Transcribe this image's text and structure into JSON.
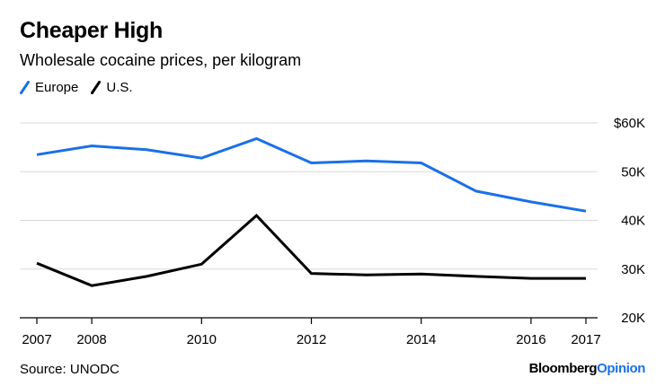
{
  "chart_data": {
    "type": "line",
    "title": "Cheaper High",
    "subtitle": "Wholesale cocaine prices, per kilogram",
    "x": [
      2007,
      2008,
      2009,
      2010,
      2011,
      2012,
      2013,
      2014,
      2015,
      2016,
      2017
    ],
    "x_tick_labels": [
      "2007",
      "2008",
      "2010",
      "2012",
      "2014",
      "2016",
      "2017"
    ],
    "x_tick_values": [
      2007,
      2008,
      2010,
      2012,
      2014,
      2016,
      2017
    ],
    "y_tick_labels": [
      "$60K",
      "50K",
      "40K",
      "30K",
      "20K"
    ],
    "y_tick_values": [
      60000,
      50000,
      40000,
      30000,
      20000
    ],
    "ylim": [
      20000,
      60000
    ],
    "xlim": [
      2007,
      2017
    ],
    "grid": true,
    "legend_position": "top-left",
    "series": [
      {
        "name": "Europe",
        "color": "#1a70e8",
        "values": [
          53500,
          55300,
          54500,
          52800,
          56800,
          51800,
          52200,
          51800,
          46000,
          43800,
          41900
        ]
      },
      {
        "name": "U.S.",
        "color": "#000000",
        "values": [
          31200,
          26600,
          28500,
          31000,
          41000,
          29100,
          28800,
          29000,
          28500,
          28100,
          28100
        ]
      }
    ]
  },
  "footer": {
    "source": "Source: UNODC",
    "brand_bold": "Bloomberg",
    "brand_accent": "Opinion"
  }
}
